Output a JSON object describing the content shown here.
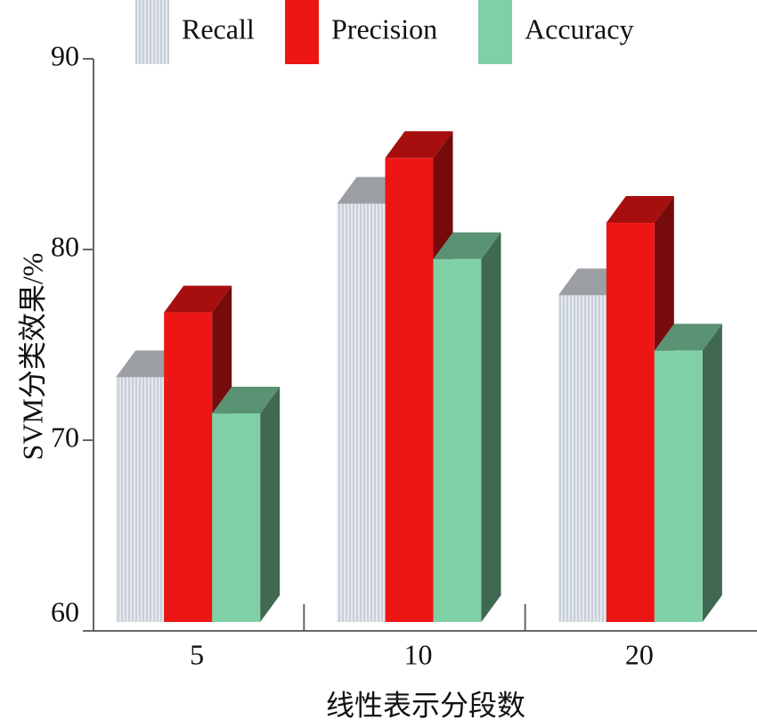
{
  "chart_data": {
    "type": "bar3d",
    "x_label": "线性表示分段数",
    "y_label": "SVM分类效果/%",
    "categories": [
      "5",
      "10",
      "20"
    ],
    "series": [
      {
        "name": "Recall",
        "color": "#dde3ea",
        "values": [
          73.3,
          82.4,
          77.6
        ]
      },
      {
        "name": "Precision",
        "color": "#ee1515",
        "values": [
          76.7,
          84.8,
          81.4
        ]
      },
      {
        "name": "Accuracy",
        "color": "#80d0a6",
        "values": [
          71.4,
          79.5,
          74.7
        ]
      }
    ],
    "ylim": [
      60,
      90
    ],
    "yticks": [
      60,
      70,
      80,
      90
    ]
  }
}
